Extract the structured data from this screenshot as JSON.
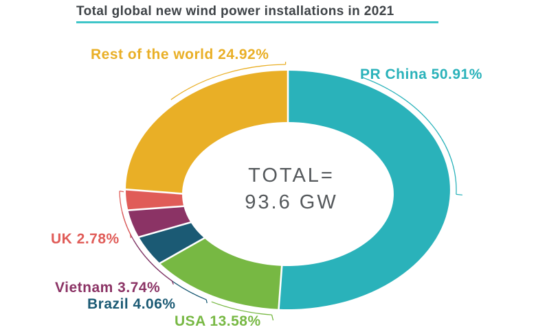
{
  "title": {
    "text": "Total global new wind power installations in 2021"
  },
  "colors": {
    "background": "#ffffff",
    "title_text": "#3e4347",
    "title_underline": "#3ec5c8",
    "center_text": "#54585b",
    "separator": "#ffffff"
  },
  "chart_data": {
    "type": "pie",
    "donut": true,
    "title": "Total global new wind power installations in 2021",
    "start_angle_deg": 0,
    "direction": "clockwise",
    "total_value": 93.6,
    "unit": "GW",
    "center_label": {
      "line1": "TOTAL=",
      "line2": "93.6 GW"
    },
    "segments": [
      {
        "label": "PR China",
        "value_pct": 50.91,
        "color": "#2ab2ba",
        "callout_text": "PR China 50.91%"
      },
      {
        "label": "USA",
        "value_pct": 13.58,
        "color": "#77b843",
        "callout_text": "USA 13.58%"
      },
      {
        "label": "Brazil",
        "value_pct": 4.06,
        "color": "#1b5a74",
        "callout_text": "Brazil 4.06%"
      },
      {
        "label": "Vietnam",
        "value_pct": 3.74,
        "color": "#8b3365",
        "callout_text": "Vietnam 3.74%"
      },
      {
        "label": "UK",
        "value_pct": 2.78,
        "color": "#e05c58",
        "callout_text": "UK 2.78%"
      },
      {
        "label": "Rest of the world",
        "value_pct": 24.92,
        "color": "#e9af26",
        "callout_text": "Rest of the world 24.92%"
      }
    ],
    "legend_position": "callout-labels"
  }
}
